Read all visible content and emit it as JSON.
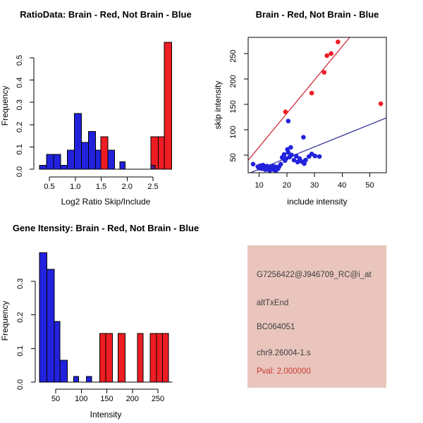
{
  "palette": {
    "red": "#ee1c23",
    "blue": "#2222dd",
    "purple": "#551a8b",
    "line_red": "#cc2031",
    "line_blue": "#2c2c96",
    "axis": "#000000",
    "info_bg": "#e9c5bd",
    "info_text": "#3f3f3f",
    "info_pval": "#cf3a30"
  },
  "chart_data": [
    {
      "type": "bar",
      "subtype": "histogram",
      "title": "RatioData: Brain - Red, Not Brain - Blue",
      "xlabel": "Log2 Ratio Skip/Include",
      "ylabel": "Frequency",
      "xlim": [
        0.28,
        2.9
      ],
      "ylim": [
        0,
        0.6
      ],
      "grid": false,
      "x_ticks": [
        0.5,
        1.0,
        1.5,
        2.0,
        2.5
      ],
      "x_tick_labels": [
        "0.5",
        "1.0",
        "1.5",
        "2.0",
        "2.5"
      ],
      "y_ticks": [
        0.0,
        0.1,
        0.2,
        0.3,
        0.4,
        0.5
      ],
      "y_tick_labels": [
        "0.0",
        "0.1",
        "0.2",
        "0.3",
        "0.4",
        "0.5"
      ],
      "baseline": [
        0.31,
        2.86
      ],
      "bars": [
        {
          "x0": 0.31,
          "x1": 0.445,
          "h": 0.017,
          "color": "blue"
        },
        {
          "x0": 0.445,
          "x1": 0.58,
          "h": 0.067,
          "color": "blue"
        },
        {
          "x0": 0.58,
          "x1": 0.715,
          "h": 0.067,
          "color": "blue"
        },
        {
          "x0": 0.715,
          "x1": 0.85,
          "h": 0.017,
          "color": "blue"
        },
        {
          "x0": 0.85,
          "x1": 0.985,
          "h": 0.085,
          "color": "blue"
        },
        {
          "x0": 0.985,
          "x1": 1.12,
          "h": 0.25,
          "color": "blue"
        },
        {
          "x0": 1.12,
          "x1": 1.255,
          "h": 0.12,
          "color": "blue"
        },
        {
          "x0": 1.255,
          "x1": 1.39,
          "h": 0.17,
          "color": "blue"
        },
        {
          "x0": 1.39,
          "x1": 1.49,
          "h": 0.085,
          "color": "blue"
        },
        {
          "x0": 1.49,
          "x1": 1.63,
          "h": 0.145,
          "color": "red"
        },
        {
          "x0": 1.63,
          "x1": 1.76,
          "h": 0.085,
          "color": "blue"
        },
        {
          "x0": 1.86,
          "x1": 1.96,
          "h": 0.034,
          "color": "blue"
        },
        {
          "x0": 2.46,
          "x1": 2.6,
          "h": 0.145,
          "color": "red"
        },
        {
          "x0": 2.6,
          "x1": 2.72,
          "h": 0.145,
          "color": "red"
        },
        {
          "x0": 2.72,
          "x1": 2.86,
          "h": 0.57,
          "color": "red"
        },
        {
          "x0": 2.46,
          "x1": 2.54,
          "h": 0.017,
          "color": "purple"
        }
      ]
    },
    {
      "type": "scatter",
      "title": "Brain - Red, Not Brain - Blue",
      "xlabel": "include intensity",
      "ylabel": "skip intensity",
      "xlim": [
        6,
        56
      ],
      "ylim": [
        15,
        282
      ],
      "grid": false,
      "x_ticks": [
        10,
        20,
        30,
        40,
        50
      ],
      "x_tick_labels": [
        "10",
        "20",
        "30",
        "40",
        "50"
      ],
      "y_ticks": [
        50,
        100,
        150,
        200,
        250
      ],
      "y_tick_labels": [
        "50",
        "100",
        "150",
        "200",
        "250"
      ],
      "series": [
        {
          "name": "Brain",
          "color": "red",
          "line_color": "line_red",
          "fit_line": {
            "slope": 6.6,
            "intercept": 0
          },
          "points": [
            [
              19.5,
              135
            ],
            [
              29,
              172
            ],
            [
              33.5,
              213
            ],
            [
              34.5,
              246
            ],
            [
              36,
              250
            ],
            [
              38.5,
              273
            ],
            [
              54,
              151
            ]
          ]
        },
        {
          "name": "Not Brain",
          "color": "blue",
          "line_color": "line_blue",
          "fit_line": {
            "slope": 2.2,
            "intercept": 0
          },
          "points": [
            [
              7.8,
              32
            ],
            [
              9.5,
              27
            ],
            [
              10,
              24
            ],
            [
              10.4,
              29
            ],
            [
              11,
              23
            ],
            [
              11.4,
              30
            ],
            [
              11.8,
              26
            ],
            [
              12.2,
              21
            ],
            [
              12.4,
              24
            ],
            [
              12.8,
              28
            ],
            [
              13.2,
              22
            ],
            [
              13.5,
              27
            ],
            [
              13.8,
              19
            ],
            [
              14.2,
              26
            ],
            [
              14.5,
              23
            ],
            [
              15,
              28
            ],
            [
              15.3,
              21
            ],
            [
              15.8,
              27
            ],
            [
              16,
              19
            ],
            [
              16.4,
              25
            ],
            [
              16.8,
              23
            ],
            [
              17.2,
              27
            ],
            [
              17.8,
              32
            ],
            [
              18.3,
              45
            ],
            [
              19,
              51
            ],
            [
              19.3,
              39
            ],
            [
              19.8,
              43
            ],
            [
              20.2,
              61
            ],
            [
              20.5,
              55
            ],
            [
              20.5,
              117
            ],
            [
              21,
              46
            ],
            [
              21.4,
              65
            ],
            [
              21.7,
              50
            ],
            [
              22.6,
              40
            ],
            [
              23.4,
              48
            ],
            [
              23.9,
              36
            ],
            [
              24.6,
              43
            ],
            [
              25.4,
              37
            ],
            [
              26,
              85
            ],
            [
              26.3,
              33
            ],
            [
              26.8,
              40
            ],
            [
              28,
              47
            ],
            [
              29,
              52
            ],
            [
              30.2,
              48
            ],
            [
              31.8,
              47
            ]
          ]
        }
      ]
    },
    {
      "type": "bar",
      "subtype": "histogram",
      "title": "Gene Itensity: Brain - Red, Not Brain - Blue",
      "xlabel": "Intensity",
      "ylabel": "Frequency",
      "xlim": [
        10,
        285
      ],
      "ylim": [
        0,
        0.4
      ],
      "grid": false,
      "x_ticks": [
        50,
        100,
        150,
        200,
        250
      ],
      "x_tick_labels": [
        "50",
        "100",
        "150",
        "200",
        "250"
      ],
      "y_ticks": [
        0.0,
        0.1,
        0.2,
        0.3
      ],
      "y_tick_labels": [
        "0.0",
        "0.1",
        "0.2",
        "0.3"
      ],
      "baseline": [
        18,
        278
      ],
      "bars": [
        {
          "x0": 18,
          "x1": 33,
          "h": 0.385,
          "color": "blue"
        },
        {
          "x0": 33,
          "x1": 47.5,
          "h": 0.335,
          "color": "blue"
        },
        {
          "x0": 47.5,
          "x1": 58,
          "h": 0.18,
          "color": "blue"
        },
        {
          "x0": 58,
          "x1": 72.5,
          "h": 0.065,
          "color": "blue"
        },
        {
          "x0": 85,
          "x1": 95,
          "h": 0.017,
          "color": "blue"
        },
        {
          "x0": 110,
          "x1": 120,
          "h": 0.017,
          "color": "blue"
        },
        {
          "x0": 136,
          "x1": 148,
          "h": 0.145,
          "color": "red"
        },
        {
          "x0": 148,
          "x1": 161,
          "h": 0.145,
          "color": "red"
        },
        {
          "x0": 172,
          "x1": 186,
          "h": 0.145,
          "color": "red"
        },
        {
          "x0": 210,
          "x1": 221,
          "h": 0.145,
          "color": "red"
        },
        {
          "x0": 235,
          "x1": 247,
          "h": 0.145,
          "color": "red"
        },
        {
          "x0": 247,
          "x1": 259,
          "h": 0.145,
          "color": "red"
        },
        {
          "x0": 259,
          "x1": 271,
          "h": 0.145,
          "color": "red"
        }
      ]
    }
  ],
  "info_panel": {
    "lines": [
      {
        "text": "G7256422@J946709_RC@i_at",
        "highlight": false
      },
      {
        "text": "altTxEnd",
        "highlight": false
      },
      {
        "text": "BC064051",
        "highlight": false
      },
      {
        "text": "chr9.26004-1.s",
        "highlight": false
      },
      {
        "text": "Pval: 2.000000",
        "highlight": true
      }
    ]
  }
}
